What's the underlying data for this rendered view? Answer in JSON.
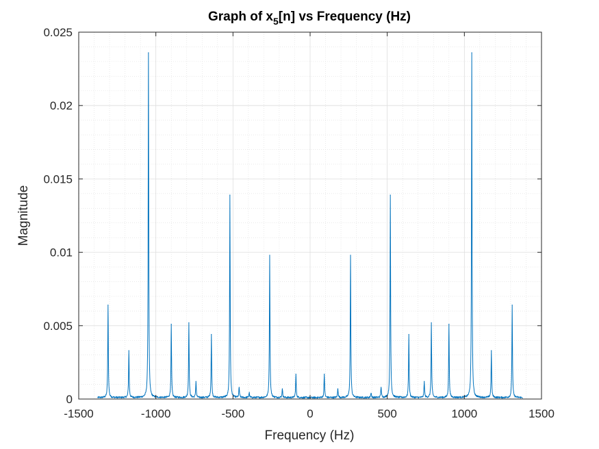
{
  "chart_data": {
    "type": "line",
    "title": "Graph of x5[n] vs Frequency (Hz)",
    "title_parts": {
      "pre": "Graph of x",
      "sub": "5",
      "post": "[n] vs Frequency (Hz)"
    },
    "xlabel": "Frequency (Hz)",
    "ylabel": "Magnitude",
    "xlim": [
      -1500,
      1500
    ],
    "ylim": [
      0,
      0.025
    ],
    "xticks": [
      -1500,
      -1000,
      -500,
      0,
      500,
      1000,
      1500
    ],
    "xtick_labels": [
      "-1500",
      "-1000",
      "-500",
      "0",
      "500",
      "1000",
      "1500"
    ],
    "yticks": [
      0,
      0.005,
      0.01,
      0.015,
      0.02,
      0.025
    ],
    "ytick_labels": [
      "0",
      "0.005",
      "0.01",
      "0.015",
      "0.02",
      "0.025"
    ],
    "grid": true,
    "minor_grid": true,
    "line_color": "#0072BD",
    "data_range": [
      -1378,
      1378
    ],
    "baseline": 0.0001,
    "peaks": [
      {
        "x": -1310,
        "y": 0.0064
      },
      {
        "x": -1175,
        "y": 0.0033
      },
      {
        "x": -1048,
        "y": 0.0236
      },
      {
        "x": -900,
        "y": 0.0051
      },
      {
        "x": -786,
        "y": 0.0052
      },
      {
        "x": -740,
        "y": 0.0012
      },
      {
        "x": -640,
        "y": 0.0044
      },
      {
        "x": -520,
        "y": 0.0139
      },
      {
        "x": -460,
        "y": 0.0008
      },
      {
        "x": -395,
        "y": 0.0004
      },
      {
        "x": -262,
        "y": 0.0098
      },
      {
        "x": -180,
        "y": 0.0007
      },
      {
        "x": -92,
        "y": 0.0017
      },
      {
        "x": 92,
        "y": 0.0017
      },
      {
        "x": 180,
        "y": 0.0007
      },
      {
        "x": 262,
        "y": 0.0098
      },
      {
        "x": 395,
        "y": 0.0004
      },
      {
        "x": 460,
        "y": 0.0008
      },
      {
        "x": 520,
        "y": 0.0139
      },
      {
        "x": 640,
        "y": 0.0044
      },
      {
        "x": 740,
        "y": 0.0012
      },
      {
        "x": 786,
        "y": 0.0052
      },
      {
        "x": 900,
        "y": 0.0051
      },
      {
        "x": 1048,
        "y": 0.0236
      },
      {
        "x": 1175,
        "y": 0.0033
      },
      {
        "x": 1310,
        "y": 0.0064
      }
    ]
  }
}
